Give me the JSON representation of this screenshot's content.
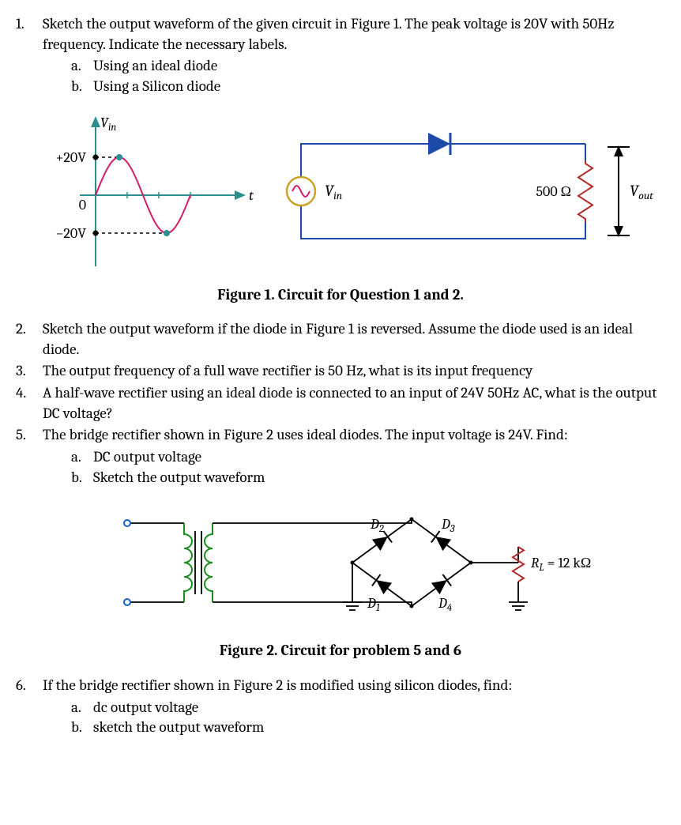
{
  "q1": {
    "num": "1.",
    "text": "Sketch the output waveform of the given circuit in Figure 1. The peak voltage is 20V with 50Hz frequency. Indicate the necessary labels.",
    "a": {
      "label": "a.",
      "text": "Using an ideal diode"
    },
    "b": {
      "label": "b.",
      "text": "Using a Silicon diode"
    }
  },
  "fig1": {
    "caption": "Figure 1. Circuit for Question 1 and 2.",
    "waveform": {
      "y_label": "V",
      "y_label_sub": "in",
      "x_label": "t",
      "peak_pos_label": "+20V",
      "peak_neg_label": "−20V",
      "zero_label": "0",
      "amplitude": 20,
      "axis_color": "#2b8f8f",
      "curve_color": "#d61b6a",
      "tick_color": "#000000",
      "dash_color": "#000000",
      "marker_fill": "#2b8f8f",
      "arrow_color": "#2b8f8f",
      "stroke_width": 2
    },
    "circuit": {
      "wire_color": "#1b4aa8",
      "diode_fill": "#1b4aa8",
      "source_ring": "#c9a227",
      "source_sine": "#d61b6a",
      "resistor_color": "#b22a2a",
      "Vin_label": "V",
      "Vin_sub": "in",
      "R_label": "500 Ω",
      "Vout_label": "V",
      "Vout_sub": "out"
    }
  },
  "q2": {
    "num": "2.",
    "text": "Sketch the output waveform if the diode in Figure 1 is reversed. Assume the diode used is an ideal diode."
  },
  "q3": {
    "num": "3.",
    "text": "The output frequency of a full wave rectifier is 50 Hz, what is its input frequency"
  },
  "q4": {
    "num": "4.",
    "text": "A half-wave rectifier using an ideal diode is connected to an input of 24V 50Hz AC, what is the output DC voltage?"
  },
  "q5": {
    "num": "5.",
    "text": "The bridge rectifier shown in Figure 2 uses ideal diodes. The input voltage is 24V. Find:",
    "a": {
      "label": "a.",
      "text": "DC output voltage"
    },
    "b": {
      "label": "b.",
      "text": "Sketch the output waveform"
    }
  },
  "fig2": {
    "caption": "Figure 2.  Circuit for problem 5 and 6",
    "wire_color": "#000000",
    "coil_color": "#1a8f1a",
    "terminal_fill": "#1560d0",
    "diode_color": "#000000",
    "resistor_color": "#b22a2a",
    "D1": "D",
    "D1s": "1",
    "D2": "D",
    "D2s": "2",
    "D3": "D",
    "D3s": "3",
    "D4": "D",
    "D4s": "4",
    "R_label": "R",
    "R_sub": "L",
    "R_val": " = 12 kΩ"
  },
  "q6": {
    "num": "6.",
    "text": "If the bridge rectifier shown in Figure 2 is modified using silicon diodes, find:",
    "a": {
      "label": "a.",
      "text": "dc output voltage"
    },
    "b": {
      "label": "b.",
      "text": "sketch the output waveform"
    }
  }
}
